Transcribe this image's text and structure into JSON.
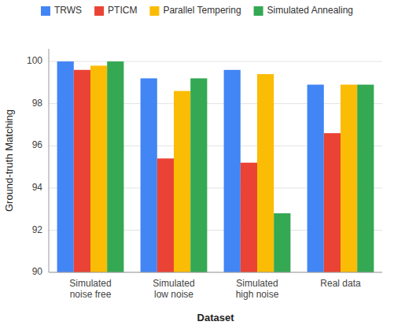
{
  "chart_data": {
    "type": "bar",
    "categories": [
      "Simulated\nnoise free",
      "Simulated\nlow noise",
      "Simulated\nhigh noise",
      "Real data"
    ],
    "series": [
      {
        "name": "TRWS",
        "color": "#4285F4",
        "values": [
          100.0,
          99.2,
          99.6,
          98.9
        ]
      },
      {
        "name": "PTICM",
        "color": "#EA4335",
        "values": [
          99.6,
          95.4,
          95.2,
          96.6
        ]
      },
      {
        "name": "Parallel Tempering",
        "color": "#FBBC05",
        "values": [
          99.8,
          98.6,
          99.4,
          98.9
        ]
      },
      {
        "name": "Simulated Annealing",
        "color": "#34A853",
        "values": [
          100.0,
          99.2,
          92.8,
          98.9
        ]
      }
    ],
    "xlabel": "Dataset",
    "ylabel": "Ground-truth Matching",
    "ylim": [
      90,
      100.6
    ],
    "yticks": [
      90,
      92,
      94,
      96,
      98,
      100
    ],
    "grid": true,
    "legend": "top"
  }
}
